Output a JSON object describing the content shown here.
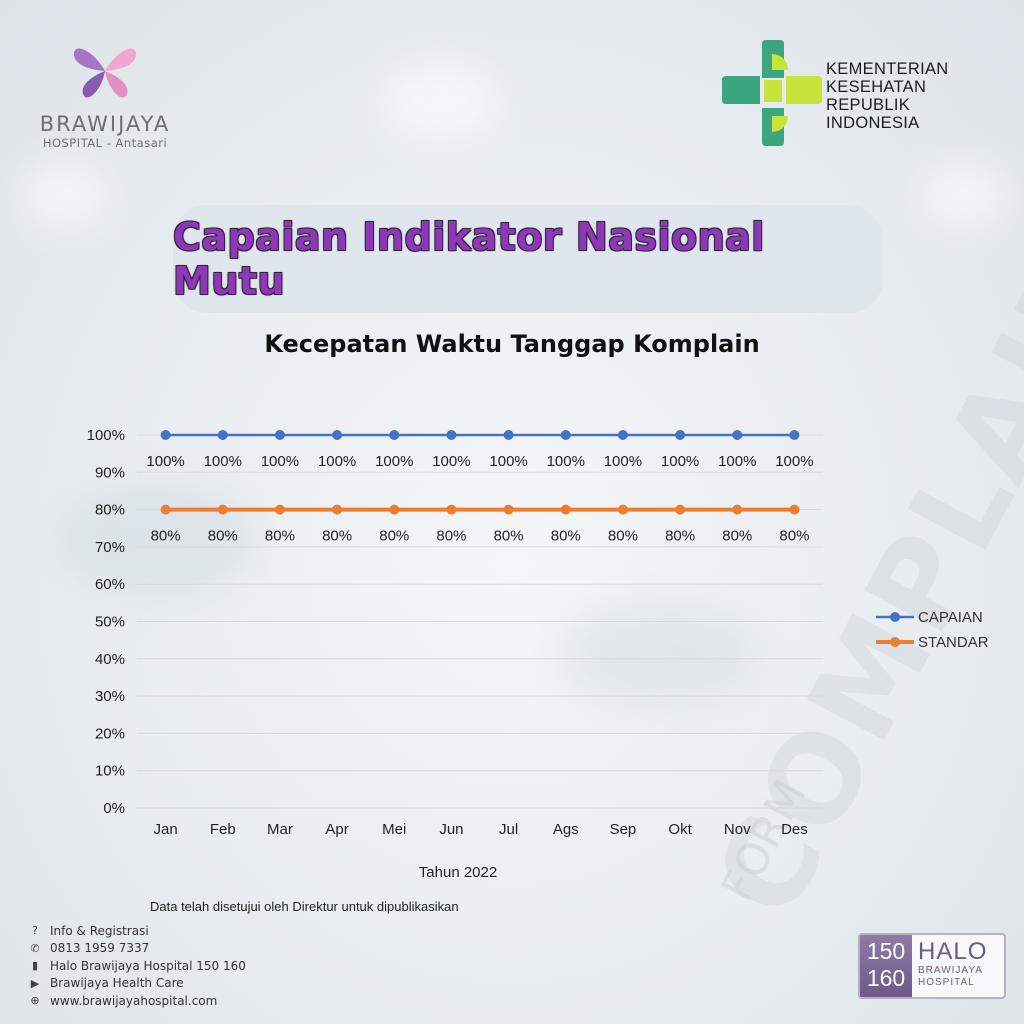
{
  "branding": {
    "hospital_name": "BRAWIJAYA",
    "hospital_sub": "HOSPITAL - Antasari",
    "ministry_line1": "KEMENTERIAN",
    "ministry_line2": "KESEHATAN",
    "ministry_line3": "REPUBLIK",
    "ministry_line4": "INDONESIA",
    "watermark": "COMPLAINT",
    "watermark_sub": "FORM"
  },
  "header": {
    "title": "Capaian Indikator Nasional Mutu",
    "subtitle": "Kecepatan Waktu Tanggap Komplain"
  },
  "chart_data": {
    "type": "line",
    "title": "Kecepatan Waktu Tanggap Komplain",
    "xlabel": "Tahun 2022",
    "ylabel": "",
    "categories": [
      "Jan",
      "Feb",
      "Mar",
      "Apr",
      "Mei",
      "Jun",
      "Jul",
      "Ags",
      "Sep",
      "Okt",
      "Nov",
      "Des"
    ],
    "ylim": [
      0,
      100
    ],
    "yticks": [
      "0%",
      "10%",
      "20%",
      "30%",
      "40%",
      "50%",
      "60%",
      "70%",
      "80%",
      "90%",
      "100%"
    ],
    "grid": true,
    "legend_position": "right",
    "series": [
      {
        "name": "CAPAIAN",
        "color": "#4472c4",
        "values": [
          100,
          100,
          100,
          100,
          100,
          100,
          100,
          100,
          100,
          100,
          100,
          100
        ],
        "labels": [
          "100%",
          "100%",
          "100%",
          "100%",
          "100%",
          "100%",
          "100%",
          "100%",
          "100%",
          "100%",
          "100%",
          "100%"
        ]
      },
      {
        "name": "STANDAR",
        "color": "#ed7d31",
        "values": [
          80,
          80,
          80,
          80,
          80,
          80,
          80,
          80,
          80,
          80,
          80,
          80
        ],
        "labels": [
          "80%",
          "80%",
          "80%",
          "80%",
          "80%",
          "80%",
          "80%",
          "80%",
          "80%",
          "80%",
          "80%",
          "80%"
        ]
      }
    ]
  },
  "footer": {
    "note": "Data telah disetujui oleh Direktur untuk dipublikasikan",
    "contacts": [
      {
        "icon": "question-icon",
        "text": "Info & Registrasi"
      },
      {
        "icon": "whatsapp-icon",
        "text": "0813 1959 7337"
      },
      {
        "icon": "phone-app-icon",
        "text": "Halo Brawijaya Hospital 150 160"
      },
      {
        "icon": "youtube-icon",
        "text": "Brawijaya Health Care"
      },
      {
        "icon": "globe-icon",
        "text": "www.brawijayahospital.com"
      }
    ],
    "halo_num_top": "150",
    "halo_num_bottom": "160",
    "halo_word": "HALO",
    "halo_line1": "BRAWIJAYA",
    "halo_line2": "HOSPITAL"
  }
}
